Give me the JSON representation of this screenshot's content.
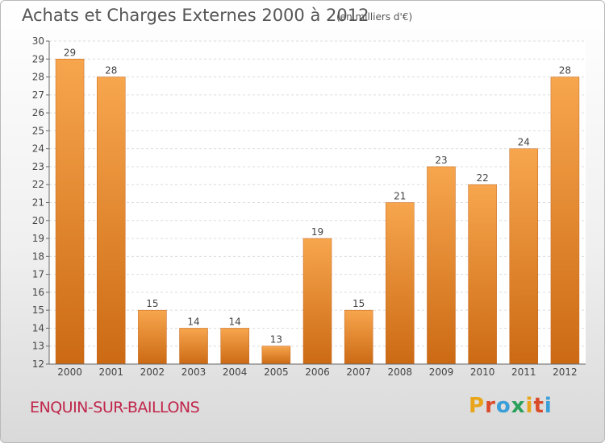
{
  "header": {
    "title": "Achats et Charges Externes 2000 à 2012",
    "unit": "(en milliers d'€)"
  },
  "footer": {
    "commune": "ENQUIN-SUR-BAILLONS",
    "logo_letters": [
      "P",
      "r",
      "o",
      "x",
      "i",
      "t",
      "i"
    ],
    "logo_colors": [
      "#e8a51b",
      "#d94b2b",
      "#3a9fd8",
      "#2aa05a",
      "#e8a51b",
      "#d94b2b",
      "#3a9fd8"
    ]
  },
  "chart_data": {
    "type": "bar",
    "title": "Achats et Charges Externes 2000 à 2012",
    "subtitle": "(en milliers d'€)",
    "categories": [
      "2000",
      "2001",
      "2002",
      "2003",
      "2004",
      "2005",
      "2006",
      "2007",
      "2008",
      "2009",
      "2010",
      "2011",
      "2012"
    ],
    "values": [
      29,
      28,
      15,
      14,
      14,
      13,
      19,
      15,
      21,
      23,
      22,
      24,
      28
    ],
    "xlabel": "",
    "ylabel": "",
    "ylim": [
      12,
      30
    ],
    "yticks": [
      12,
      13,
      14,
      15,
      16,
      17,
      18,
      19,
      20,
      21,
      22,
      23,
      24,
      25,
      26,
      27,
      28,
      29,
      30
    ],
    "grid": true,
    "legend": "none",
    "bar_color": "#e8852b"
  }
}
